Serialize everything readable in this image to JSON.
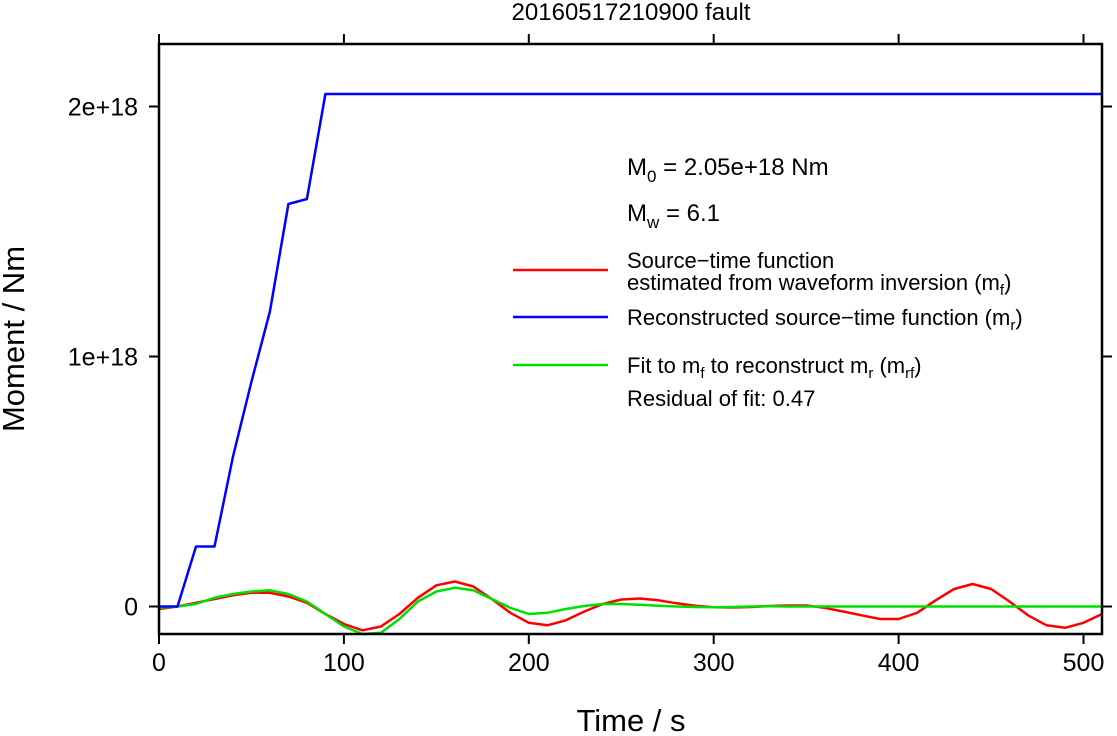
{
  "chart_data": {
    "type": "line",
    "title": "20160517210900 fault",
    "xlabel": "Time / s",
    "ylabel": "Moment / Nm",
    "xlim": [
      0,
      510
    ],
    "ylim": [
      -1.1e+17,
      2.25e+18
    ],
    "xticks": [
      0,
      100,
      200,
      300,
      400,
      500
    ],
    "xtick_labels": [
      "0",
      "100",
      "200",
      "300",
      "400",
      "500"
    ],
    "yticks": [
      0,
      1e+18,
      2e+18
    ],
    "ytick_labels": [
      "0",
      "1e+18",
      "2e+18"
    ],
    "grid": false,
    "legend_position": "right",
    "annotations": {
      "m0": "M0 = 2.05e+18 Nm",
      "mw": "Mw = 6.1",
      "residual": "Residual of fit: 0.47"
    },
    "series": [
      {
        "name": "Source-time function estimated from waveform inversion (mf)",
        "color": "#ff0000",
        "x": [
          0,
          10,
          20,
          30,
          40,
          50,
          60,
          70,
          80,
          90,
          100,
          110,
          120,
          130,
          140,
          150,
          160,
          170,
          180,
          190,
          200,
          210,
          220,
          230,
          240,
          250,
          260,
          270,
          280,
          290,
          300,
          310,
          320,
          330,
          340,
          350,
          360,
          370,
          380,
          390,
          400,
          410,
          420,
          430,
          440,
          450,
          460,
          470,
          480,
          490,
          500,
          510
        ],
        "y": [
          -1e+16,
          0,
          1.5e+16,
          3e+16,
          4.5e+16,
          5.5e+16,
          5.5e+16,
          4e+16,
          1.5e+16,
          -3e+16,
          -7e+16,
          -9.5e+16,
          -8e+16,
          -3e+16,
          3.5e+16,
          8.5e+16,
          1e+17,
          8e+16,
          3e+16,
          -2.5e+16,
          -6.5e+16,
          -7.5e+16,
          -5.5e+16,
          -2e+16,
          1e+16,
          2.8e+16,
          3.2e+16,
          2.5e+16,
          1.3e+16,
          3000000000000000.0,
          -3000000000000000.0,
          -4000000000000000.0,
          -2000000000000000.0,
          2000000000000000.0,
          4000000000000000.0,
          4000000000000000.0,
          -5000000000000000.0,
          -2e+16,
          -3.5e+16,
          -5e+16,
          -5e+16,
          -2.5e+16,
          2.5e+16,
          7e+16,
          9e+16,
          7e+16,
          2e+16,
          -3.5e+16,
          -7.5e+16,
          -8.5e+16,
          -6.5e+16,
          -3e+16
        ]
      },
      {
        "name": "Reconstructed source-time function (mr)",
        "color": "#0000ff",
        "x": [
          0,
          10,
          20,
          30,
          40,
          50,
          60,
          70,
          80,
          90,
          510
        ],
        "y": [
          0,
          0,
          2.4e+17,
          2.4e+17,
          6e+17,
          9e+17,
          1.18e+18,
          1.61e+18,
          1.63e+18,
          2.05e+18,
          2.05e+18
        ]
      },
      {
        "name": "Fit to mf to reconstruct mr (mrf)",
        "color": "#00e000",
        "x": [
          0,
          10,
          20,
          30,
          40,
          50,
          60,
          70,
          80,
          90,
          100,
          110,
          120,
          130,
          140,
          150,
          160,
          170,
          180,
          190,
          200,
          210,
          220,
          230,
          240,
          250,
          260,
          270,
          280,
          290,
          300,
          310,
          320,
          330,
          340,
          350,
          360,
          370,
          380,
          390,
          400,
          410,
          420,
          430,
          440,
          450,
          460,
          470,
          480,
          490,
          500,
          510
        ],
        "y": [
          -5000000000000000.0,
          0,
          1e+16,
          3.5e+16,
          5e+16,
          6e+16,
          6.5e+16,
          5e+16,
          2e+16,
          -3e+16,
          -8e+16,
          -1.1e+17,
          -1.05e+17,
          -5e+16,
          2e+16,
          6e+16,
          7.5e+16,
          6.5e+16,
          3e+16,
          -5000000000000000.0,
          -3e+16,
          -2.5e+16,
          -1e+16,
          2000000000000000.0,
          1e+16,
          1e+16,
          7000000000000000.0,
          3000000000000000.0,
          0,
          -2000000000000000.0,
          -3000000000000000.0,
          -2000000000000000.0,
          0,
          1000000000000000.0,
          0,
          0,
          0,
          0,
          0,
          0,
          0,
          0,
          0,
          0,
          0,
          0,
          0,
          0,
          0,
          0,
          0,
          0
        ]
      }
    ]
  }
}
